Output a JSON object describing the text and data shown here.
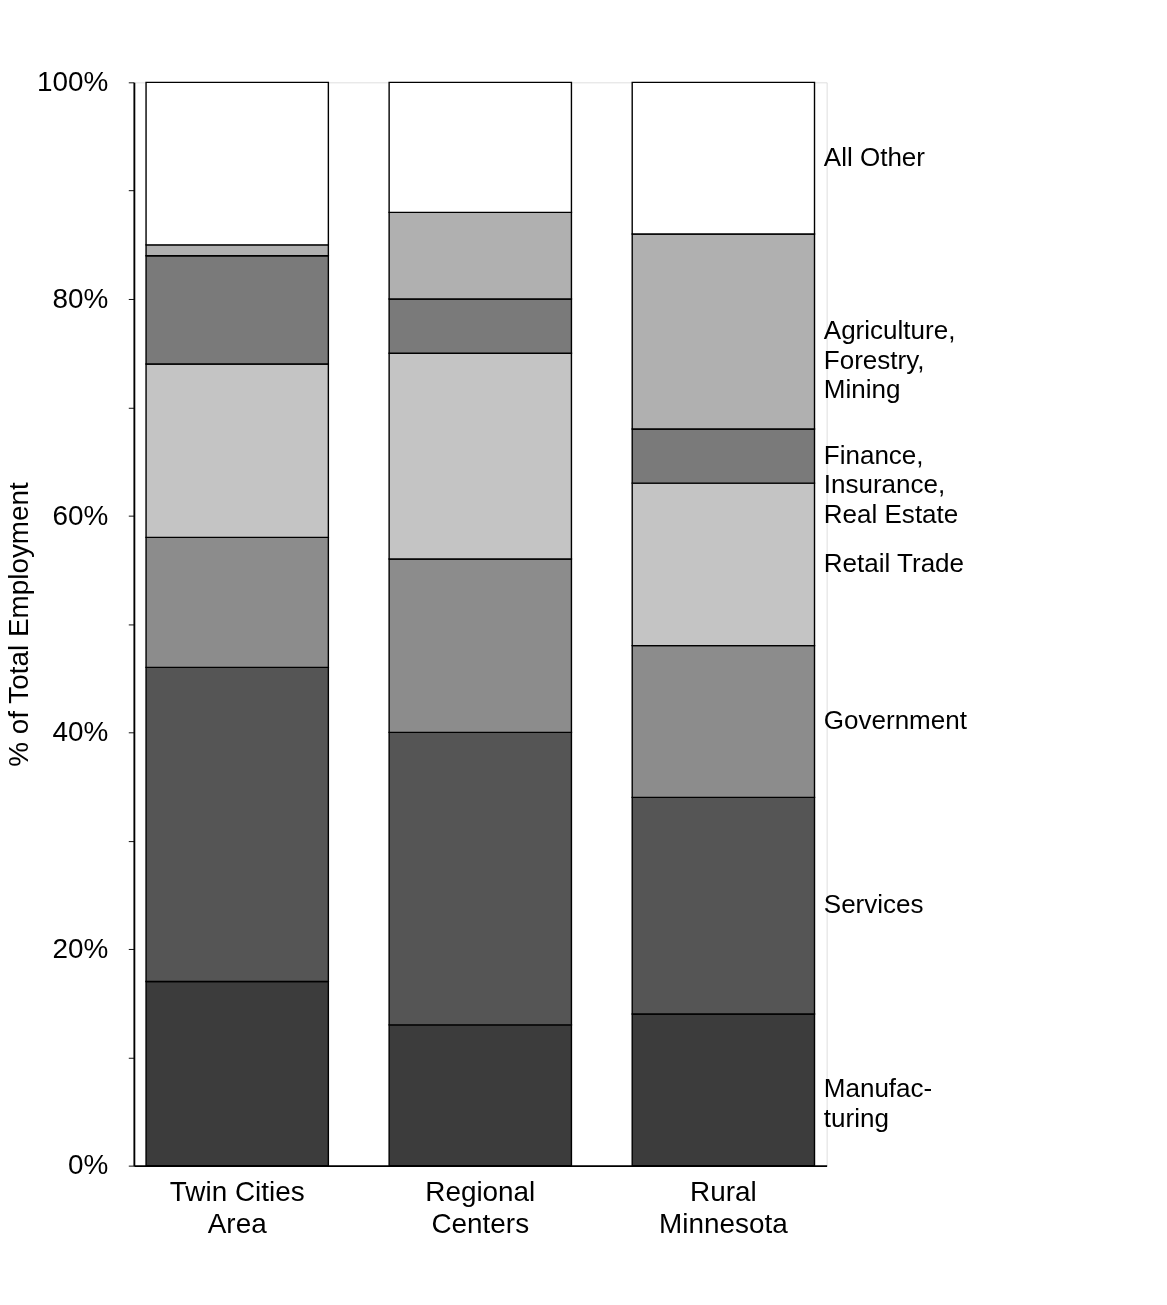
{
  "chart_data": {
    "type": "bar",
    "stacked": true,
    "ylabel": "% of Total Employment",
    "categories": [
      "Twin Cities\nArea",
      "Regional\nCenters",
      "Rural\nMinnesota"
    ],
    "series": [
      {
        "name": "Manufac-\nturing",
        "color": "#3c3c3c",
        "values": [
          17,
          13,
          14
        ]
      },
      {
        "name": "Services",
        "color": "#555555",
        "values": [
          29,
          27,
          20
        ]
      },
      {
        "name": "Government",
        "color": "#8c8c8c",
        "values": [
          12,
          16,
          14
        ]
      },
      {
        "name": "Retail Trade",
        "color": "#c4c4c4",
        "values": [
          16,
          19,
          15
        ]
      },
      {
        "name": "Finance,\nInsurance,\nReal Estate",
        "color": "#7a7a7a",
        "values": [
          10,
          5,
          5
        ]
      },
      {
        "name": "Agriculture,\nForestry,\nMining",
        "color": "#b0b0b0",
        "values": [
          1,
          8,
          18
        ]
      },
      {
        "name": "All Other",
        "color": "#ffffff",
        "values": [
          15,
          12,
          14
        ]
      }
    ],
    "ylim": [
      0,
      100
    ],
    "yticks": [
      {
        "value": 0,
        "label": "0%"
      },
      {
        "value": 10,
        "label": null
      },
      {
        "value": 20,
        "label": "20%"
      },
      {
        "value": 30,
        "label": null
      },
      {
        "value": 40,
        "label": "40%"
      },
      {
        "value": 50,
        "label": null
      },
      {
        "value": 60,
        "label": "60%"
      },
      {
        "value": 70,
        "label": null
      },
      {
        "value": 80,
        "label": "80%"
      },
      {
        "value": 90,
        "label": null
      },
      {
        "value": 100,
        "label": "100%"
      }
    ],
    "grid": false
  }
}
